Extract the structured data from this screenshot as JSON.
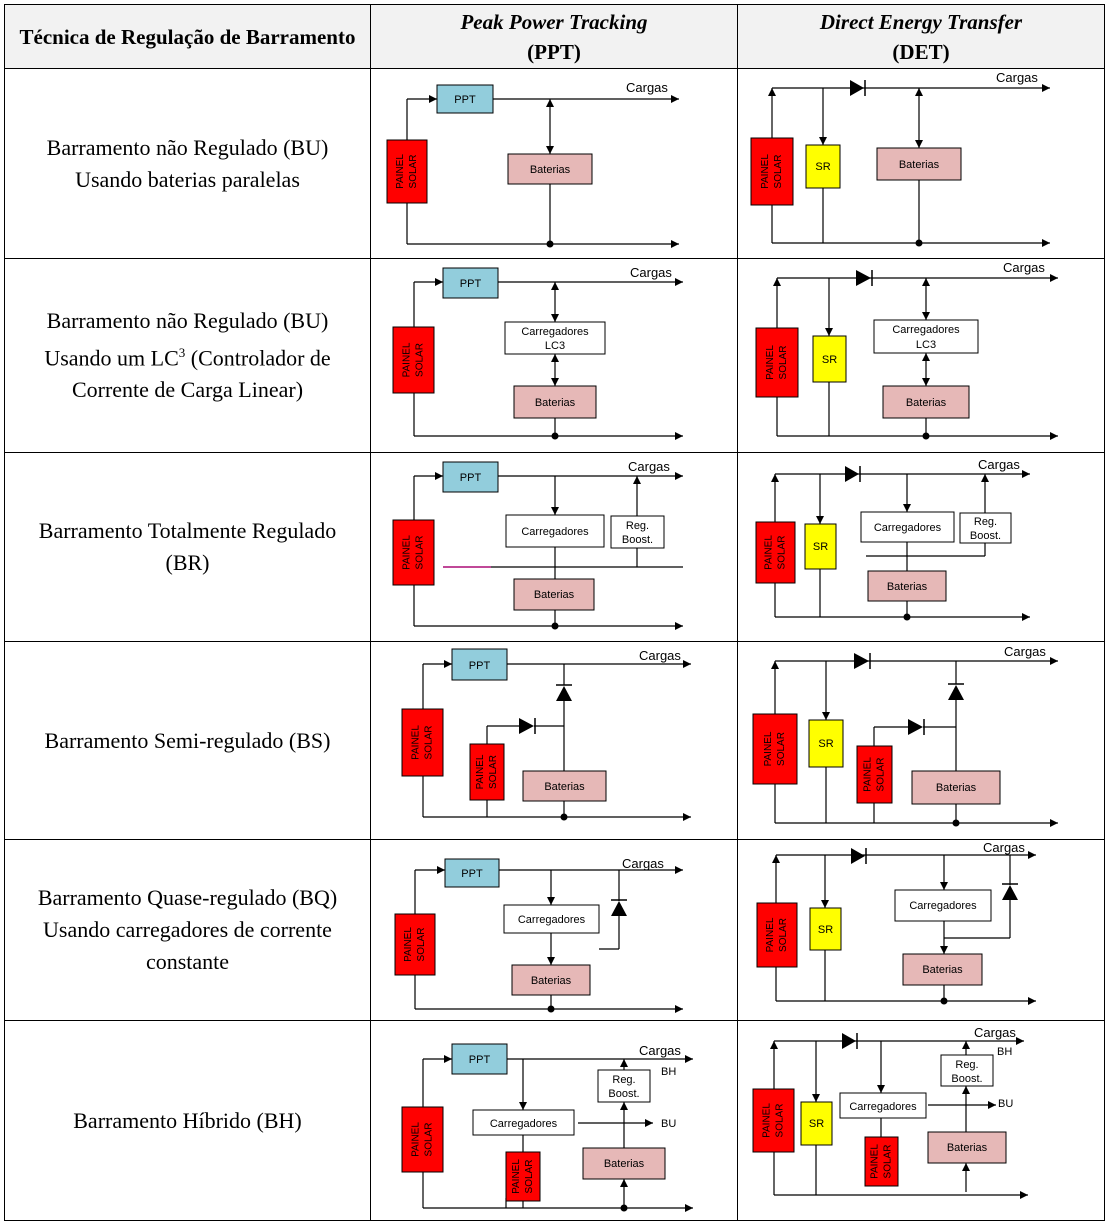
{
  "header": {
    "col1": "Técnica de Regulação de Barramento",
    "col2_title": "Peak Power Tracking",
    "col2_abbr": "(PPT)",
    "col3_title": "Direct Energy Transfer",
    "col3_abbr": "(DET)"
  },
  "rows": [
    {
      "line1": "Barramento não Regulado (BU)",
      "line2": "Usando baterias paralelas"
    },
    {
      "line1": "Barramento não Regulado (BU)",
      "line2a": "Usando um LC",
      "sup": "3",
      "line2b": " (Controlador de",
      "line3": "Corrente de Carga Linear)"
    },
    {
      "line1": "Barramento Totalmente Regulado",
      "line2": "(BR)"
    },
    {
      "line1": "Barramento Semi-regulado (BS)"
    },
    {
      "line1": "Barramento Quase-regulado (BQ)",
      "line2": "Usando carregadores de corrente",
      "line3": "constante"
    },
    {
      "line1": "Barramento Híbrido (BH)"
    }
  ],
  "labels": {
    "ppt": "PPT",
    "cargas": "Cargas",
    "baterias": "Baterias",
    "carregadores": "Carregadores",
    "lc3": "LC3",
    "painel": "PAINEL",
    "solar": "SOLAR",
    "sr": "SR",
    "reg": "Reg.",
    "boost": "Boost.",
    "bh": "BH",
    "bu": "BU"
  },
  "colors": {
    "solar": "#ff0000",
    "ppt": "#92cddc",
    "sr": "#ffff00",
    "baterias": "#e6b8b7",
    "header_bg": "#f2f2f2"
  }
}
